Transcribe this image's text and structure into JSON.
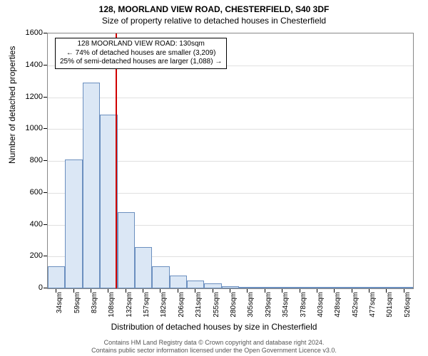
{
  "title": "128, MOORLAND VIEW ROAD, CHESTERFIELD, S40 3DF",
  "subtitle": "Size of property relative to detached houses in Chesterfield",
  "chart": {
    "type": "histogram",
    "ylabel": "Number of detached properties",
    "xlabel": "Distribution of detached houses by size in Chesterfield",
    "ylim": [
      0,
      1600
    ],
    "ytick_step": 200,
    "yticks": [
      0,
      200,
      400,
      600,
      800,
      1000,
      1200,
      1400,
      1600
    ],
    "xticks": [
      "34sqm",
      "59sqm",
      "83sqm",
      "108sqm",
      "132sqm",
      "157sqm",
      "182sqm",
      "206sqm",
      "231sqm",
      "255sqm",
      "280sqm",
      "305sqm",
      "329sqm",
      "354sqm",
      "378sqm",
      "403sqm",
      "428sqm",
      "452sqm",
      "477sqm",
      "501sqm",
      "526sqm"
    ],
    "values": [
      140,
      810,
      1290,
      1090,
      480,
      260,
      140,
      80,
      50,
      30,
      15,
      10,
      8,
      8,
      5,
      10,
      0,
      3,
      0,
      3,
      0
    ],
    "bar_fill": "#dbe7f5",
    "bar_stroke": "#6b8fbf",
    "grid_color": "#e0e0e0",
    "background_color": "#ffffff",
    "axis_color": "#888888",
    "tick_fontsize": 10,
    "label_fontsize": 12,
    "title_fontsize": 12,
    "reference_line": {
      "value_index": 3.9,
      "color": "#d00000",
      "width": 2
    }
  },
  "annotation": {
    "line1": "128 MOORLAND VIEW ROAD: 130sqm",
    "line2": "← 74% of detached houses are smaller (3,209)",
    "line3": "25% of semi-detached houses are larger (1,088) →",
    "border_color": "#000000",
    "background_color": "#ffffff",
    "fontsize": 10
  },
  "footer": {
    "line1": "Contains HM Land Registry data © Crown copyright and database right 2024.",
    "line2": "Contains public sector information licensed under the Open Government Licence v3.0."
  }
}
